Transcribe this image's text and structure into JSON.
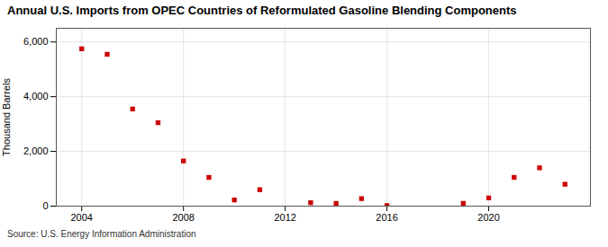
{
  "chart_data": {
    "type": "scatter",
    "title": "Annual U.S. Imports from OPEC Countries of Reformulated Gasoline Blending Components",
    "ylabel": "Thousand Barrels",
    "source": "Source: U.S. Energy Information Administration",
    "x": [
      2004,
      2005,
      2006,
      2007,
      2008,
      2009,
      2010,
      2011,
      2013,
      2014,
      2015,
      2016,
      2019,
      2020,
      2021,
      2022,
      2023
    ],
    "values": [
      5750,
      5550,
      3550,
      3050,
      1650,
      1050,
      225,
      600,
      125,
      100,
      275,
      20,
      100,
      300,
      1050,
      1400,
      800
    ],
    "color": "#cc0000",
    "marker": "square",
    "xlim": [
      2003,
      2024
    ],
    "ylim": [
      0,
      6500
    ],
    "xticks": [
      2004,
      2008,
      2012,
      2016,
      2020
    ],
    "yticks": [
      0,
      {
        "value": 2000,
        "label": "2,000"
      },
      {
        "value": 4000,
        "label": "4,000"
      },
      {
        "value": 6000,
        "label": "6,000"
      }
    ],
    "grid": true
  }
}
